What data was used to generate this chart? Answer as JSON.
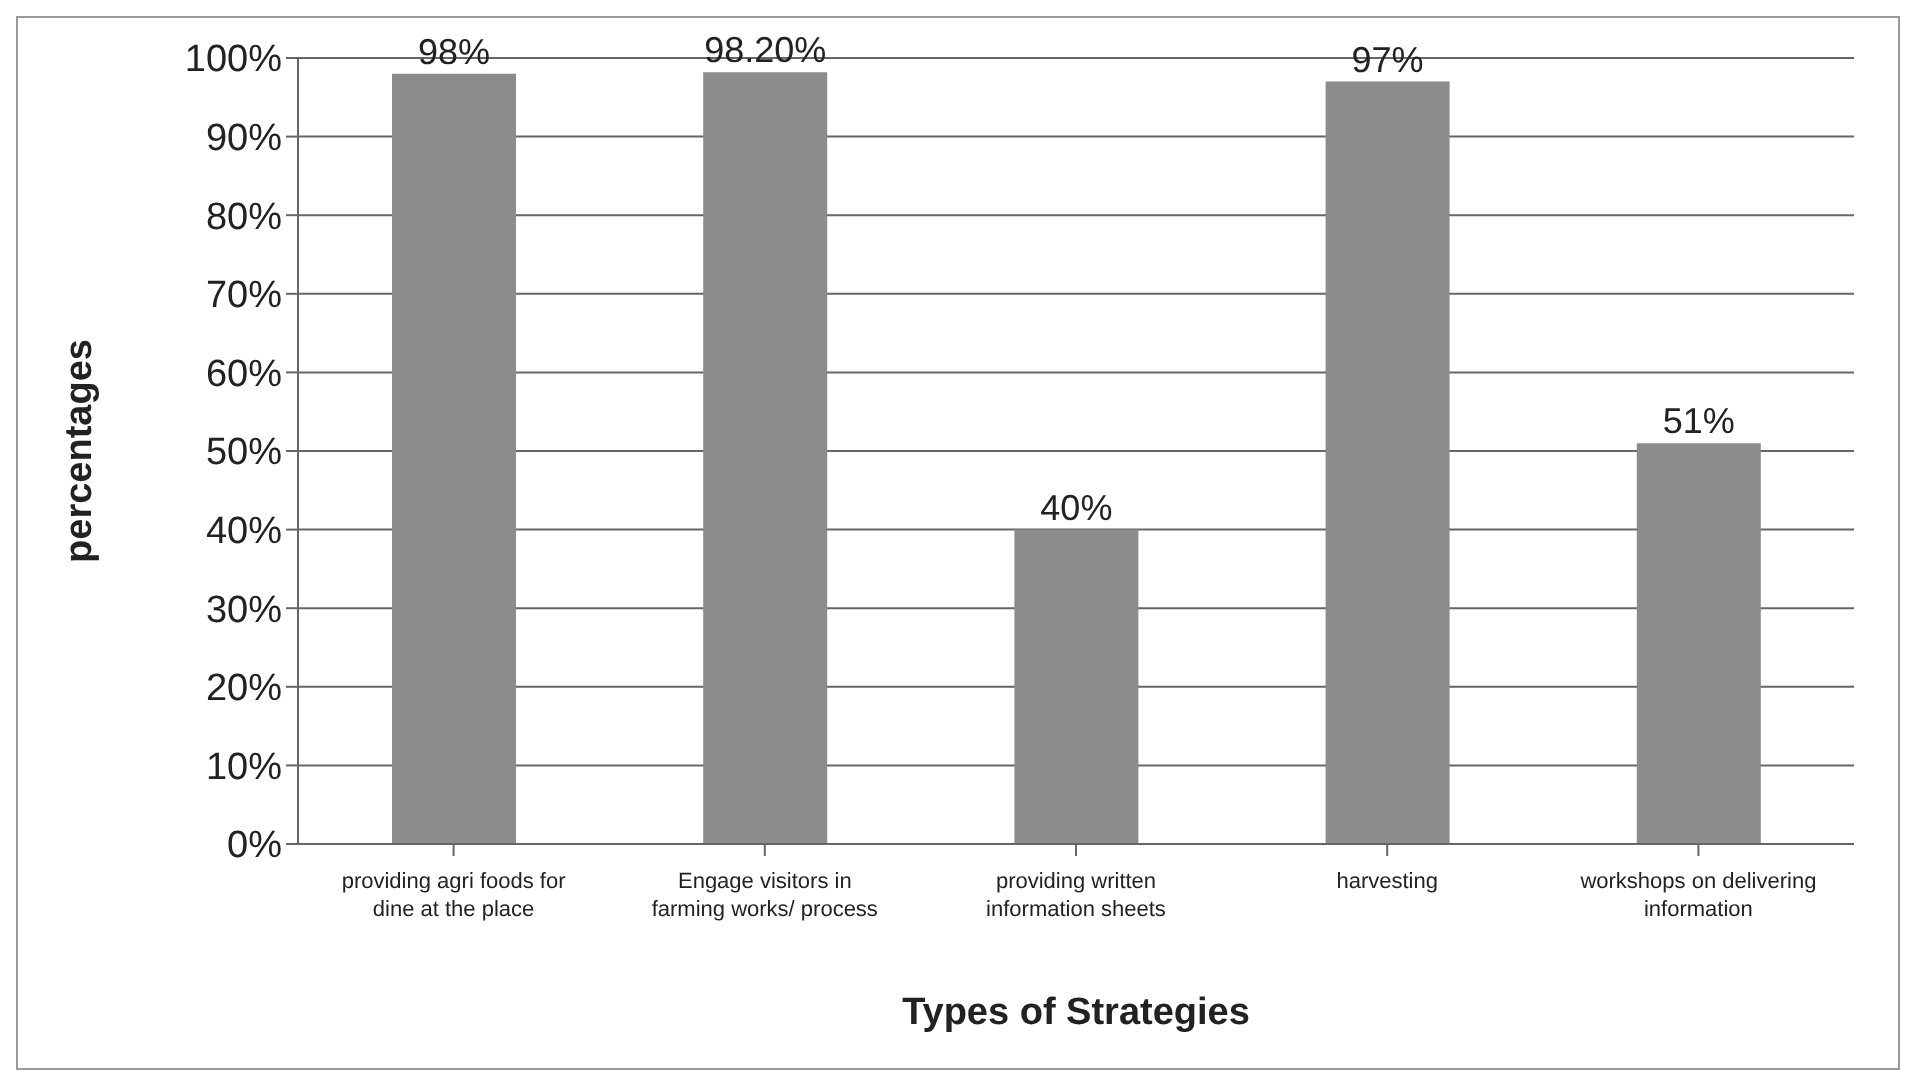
{
  "chart_data": {
    "type": "bar",
    "xlabel": "Types of Strategies",
    "ylabel": "percentages",
    "categories": [
      "providing agri foods for dine at the place",
      "Engage visitors in farming works/ process",
      "providing written information sheets",
      "harvesting",
      "workshops on delivering information"
    ],
    "values": [
      98,
      98.2,
      40,
      97,
      51
    ],
    "value_labels": [
      "98%",
      "98.20%",
      "40%",
      "97%",
      "51%"
    ],
    "color": "#8c8c8c",
    "ylim": [
      0,
      100
    ],
    "yticks": [
      {
        "value": 0,
        "label": "0%"
      },
      {
        "value": 10,
        "label": "10%"
      },
      {
        "value": 20,
        "label": "20%"
      },
      {
        "value": 30,
        "label": "30%"
      },
      {
        "value": 40,
        "label": "40%"
      },
      {
        "value": 50,
        "label": "50%"
      },
      {
        "value": 60,
        "label": "60%"
      },
      {
        "value": 70,
        "label": "70%"
      },
      {
        "value": 80,
        "label": "80%"
      },
      {
        "value": 90,
        "label": "90%"
      },
      {
        "value": 100,
        "label": "100%"
      }
    ],
    "grid": "y"
  }
}
